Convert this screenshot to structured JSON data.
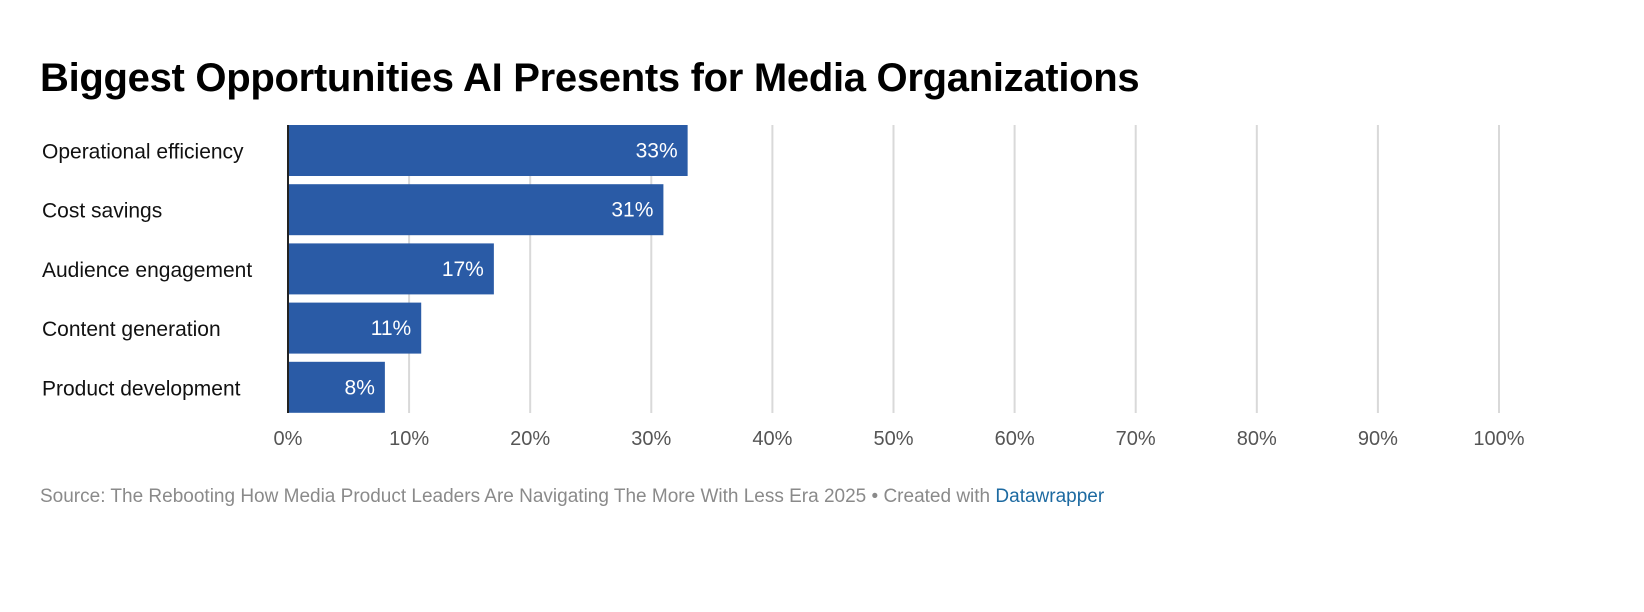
{
  "chart_data": {
    "type": "bar",
    "orientation": "horizontal",
    "title": "Biggest Opportunities AI Presents for Media Organizations",
    "categories": [
      "Operational efficiency",
      "Cost savings",
      "Audience engagement",
      "Content generation",
      "Product development"
    ],
    "values": [
      33,
      31,
      17,
      11,
      8
    ],
    "value_labels": [
      "33%",
      "31%",
      "17%",
      "11%",
      "8%"
    ],
    "xlim": [
      0,
      100
    ],
    "x_ticks": [
      0,
      10,
      20,
      30,
      40,
      50,
      60,
      70,
      80,
      90,
      100
    ],
    "x_tick_labels": [
      "0%",
      "10%",
      "20%",
      "30%",
      "40%",
      "50%",
      "60%",
      "70%",
      "80%",
      "90%",
      "100%"
    ],
    "xlabel": "",
    "ylabel": "",
    "grid": true,
    "bar_color": "#2a5ba6",
    "legend": "none"
  },
  "footer": {
    "source_text": "Source: The Rebooting How Media Product Leaders Are Navigating The More With Less Era 2025 • Created with ",
    "link_text": "Datawrapper"
  }
}
